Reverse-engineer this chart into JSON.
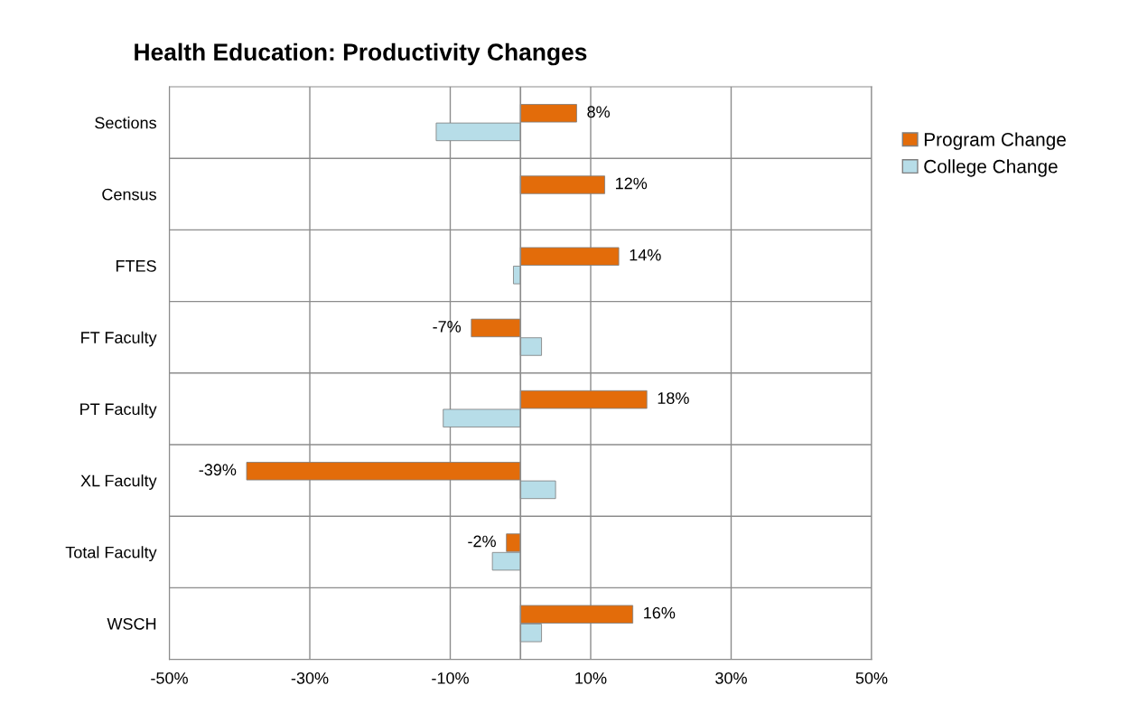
{
  "chart_data": {
    "type": "bar",
    "orientation": "horizontal",
    "title": "Health Education: Productivity Changes",
    "categories": [
      "Sections",
      "Census",
      "FTES",
      "FT Faculty",
      "PT Faculty",
      "XL Faculty",
      "Total Faculty",
      "WSCH"
    ],
    "series": [
      {
        "name": "Program Change",
        "color": "#e36c0a",
        "values": [
          8,
          12,
          14,
          -7,
          18,
          -39,
          -2,
          16
        ],
        "value_labels": [
          "8%",
          "12%",
          "14%",
          "-7%",
          "18%",
          "-39%",
          "-2%",
          "16%"
        ]
      },
      {
        "name": "College Change",
        "color": "#b7dde8",
        "values": [
          -12,
          null,
          -1,
          3,
          -11,
          5,
          -4,
          3
        ]
      }
    ],
    "xlim": [
      -50,
      50
    ],
    "xticks": [
      {
        "value": -50,
        "label": "-50%"
      },
      {
        "value": -30,
        "label": "-30%"
      },
      {
        "value": -10,
        "label": "-10%"
      },
      {
        "value": 10,
        "label": "10%"
      },
      {
        "value": 30,
        "label": "30%"
      },
      {
        "value": 50,
        "label": "50%"
      }
    ],
    "grid": true,
    "legend": "right"
  }
}
